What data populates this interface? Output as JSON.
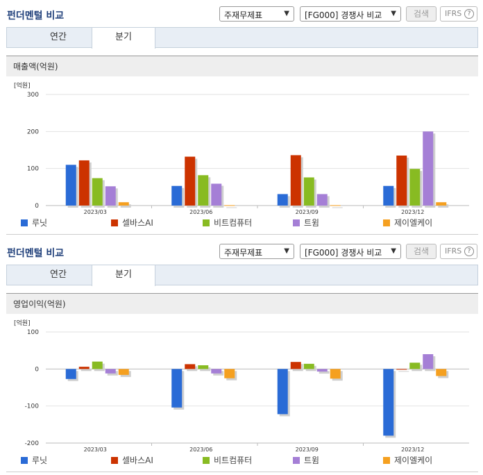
{
  "sections": [
    {
      "title": "펀더멘털 비교",
      "controls": {
        "statement_select": "주재무제표",
        "peer_select": "[FG000] 경쟁사 비교",
        "search_label": "검색",
        "ifrs_label": "IFRS",
        "help_glyph": "?"
      },
      "tabs": [
        {
          "label": "연간",
          "active": false
        },
        {
          "label": "분기",
          "active": true
        }
      ],
      "metric_label": "매출액(억원)"
    },
    {
      "title": "펀더멘털 비교",
      "controls": {
        "statement_select": "주재무제표",
        "peer_select": "[FG000] 경쟁사 비교",
        "search_label": "검색",
        "ifrs_label": "IFRS",
        "help_glyph": "?"
      },
      "tabs": [
        {
          "label": "연간",
          "active": false
        },
        {
          "label": "분기",
          "active": true
        }
      ],
      "metric_label": "영업이익(억원)"
    }
  ],
  "chart_data": [
    {
      "type": "bar",
      "unit_label": "[억원]",
      "categories": [
        "2023/03",
        "2023/06",
        "2023/09",
        "2023/12"
      ],
      "ylim": [
        0,
        300
      ],
      "yticks": [
        0,
        100,
        200,
        300
      ],
      "grid": true,
      "legend_position": "bottom",
      "series": [
        {
          "name": "루닛",
          "color": "#2a6bd6",
          "values": [
            110,
            53,
            31,
            53
          ]
        },
        {
          "name": "셀바스AI",
          "color": "#cc3300",
          "values": [
            122,
            132,
            136,
            135
          ]
        },
        {
          "name": "비트컴퓨터",
          "color": "#88bb22",
          "values": [
            74,
            82,
            76,
            99
          ]
        },
        {
          "name": "트윔",
          "color": "#a57fd6",
          "values": [
            52,
            59,
            31,
            200
          ]
        },
        {
          "name": "제이엘케이",
          "color": "#f5a020",
          "values": [
            9,
            1,
            1,
            9
          ]
        }
      ]
    },
    {
      "type": "bar",
      "unit_label": "[억원]",
      "categories": [
        "2023/03",
        "2023/06",
        "2023/09",
        "2023/12"
      ],
      "ylim": [
        -200,
        100
      ],
      "yticks": [
        -200,
        -100,
        0,
        100
      ],
      "grid": true,
      "legend_position": "bottom",
      "series": [
        {
          "name": "루닛",
          "color": "#2a6bd6",
          "values": [
            -27,
            -104,
            -122,
            -180
          ]
        },
        {
          "name": "셀바스AI",
          "color": "#cc3300",
          "values": [
            6,
            13,
            19,
            0
          ]
        },
        {
          "name": "비트컴퓨터",
          "color": "#88bb22",
          "values": [
            20,
            10,
            14,
            17
          ]
        },
        {
          "name": "트윔",
          "color": "#a57fd6",
          "values": [
            -12,
            -12,
            -7,
            40
          ]
        },
        {
          "name": "제이엘케이",
          "color": "#f5a020",
          "values": [
            -16,
            -25,
            -26,
            -19
          ]
        }
      ]
    }
  ]
}
